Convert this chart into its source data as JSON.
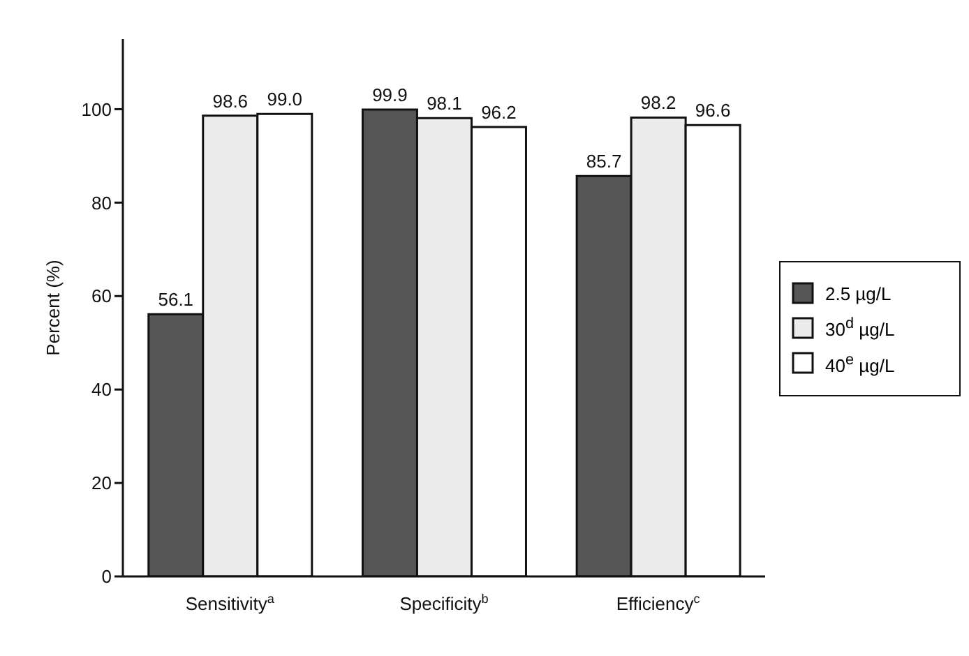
{
  "chart_data": {
    "type": "bar",
    "ylabel": "Percent (%)",
    "categories": [
      "Sensitivity$^{a}$",
      "Specificity$^{b}$",
      "Efficiency$^{c}$"
    ],
    "series": [
      {
        "name": "2.5 µg/L",
        "color": "#555555",
        "values": [
          56.1,
          99.9,
          85.7
        ],
        "value_labels": [
          "56.1",
          "99.9",
          "85.7"
        ]
      },
      {
        "name": "30$^{d}$ µg/L",
        "color": "#ececec",
        "values": [
          98.6,
          98.1,
          98.2
        ],
        "value_labels": [
          "98.6",
          "98.1",
          "98.2"
        ]
      },
      {
        "name": "40$^{e}$ µg/L",
        "color": "#ffffff",
        "values": [
          99.0,
          96.2,
          96.6
        ],
        "value_labels": [
          "99.0",
          "96.2",
          "96.6"
        ]
      }
    ],
    "ylim": [
      0,
      115
    ],
    "yticks": [
      0,
      20,
      40,
      60,
      80,
      100
    ],
    "grid": false,
    "legend": "right"
  }
}
